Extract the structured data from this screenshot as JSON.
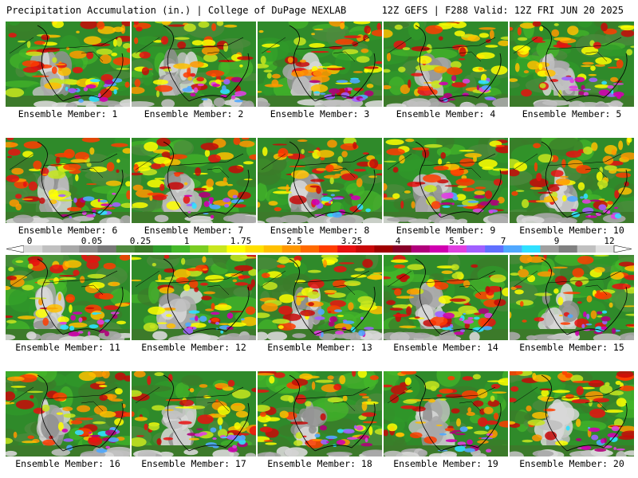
{
  "header": {
    "title": "Precipitation Accumulation (in.) | College of DuPage NEXLAB",
    "run_info": "12Z GEFS | F288 Valid: 12Z FRI JUN 20 2025"
  },
  "map_label_prefix": "Ensemble Member: ",
  "members": [
    {
      "label": "Ensemble Member: 1",
      "seed": 11
    },
    {
      "label": "Ensemble Member: 2",
      "seed": 23
    },
    {
      "label": "Ensemble Member: 3",
      "seed": 37
    },
    {
      "label": "Ensemble Member: 4",
      "seed": 41
    },
    {
      "label": "Ensemble Member: 5",
      "seed": 59
    },
    {
      "label": "Ensemble Member: 6",
      "seed": 61
    },
    {
      "label": "Ensemble Member: 7",
      "seed": 73
    },
    {
      "label": "Ensemble Member: 8",
      "seed": 89
    },
    {
      "label": "Ensemble Member: 9",
      "seed": 97
    },
    {
      "label": "Ensemble Member: 10",
      "seed": 103
    },
    {
      "label": "Ensemble Member: 11",
      "seed": 109
    },
    {
      "label": "Ensemble Member: 12",
      "seed": 127
    },
    {
      "label": "Ensemble Member: 13",
      "seed": 131
    },
    {
      "label": "Ensemble Member: 14",
      "seed": 149
    },
    {
      "label": "Ensemble Member: 15",
      "seed": 151
    },
    {
      "label": "Ensemble Member: 16",
      "seed": 163
    },
    {
      "label": "Ensemble Member: 17",
      "seed": 173
    },
    {
      "label": "Ensemble Member: 18",
      "seed": 181
    },
    {
      "label": "Ensemble Member: 19",
      "seed": 191
    },
    {
      "label": "Ensemble Member: 20",
      "seed": 197
    }
  ],
  "colorbar": {
    "tick_labels": [
      "0",
      "0.05",
      "0.25",
      "1",
      "1.75",
      "2.5",
      "3.25",
      "4",
      "5.5",
      "7",
      "9",
      "12"
    ],
    "colors": [
      "#d8d8d8",
      "#c0c0c0",
      "#a8a8a8",
      "#909090",
      "#787878",
      "#4e8a3e",
      "#3c7a2a",
      "#2f9a2a",
      "#45b82a",
      "#7acc22",
      "#c8e61e",
      "#ffff00",
      "#ffe000",
      "#ffc000",
      "#ff9800",
      "#ff6a00",
      "#ff3c00",
      "#e81010",
      "#c80808",
      "#a00000",
      "#880028",
      "#b0007a",
      "#d000b0",
      "#e040e0",
      "#a060ff",
      "#6070ff",
      "#50a8ff",
      "#30e0ff",
      "#a0a0a0",
      "#808080",
      "#c0c0c0",
      "#e0e0e0"
    ]
  }
}
